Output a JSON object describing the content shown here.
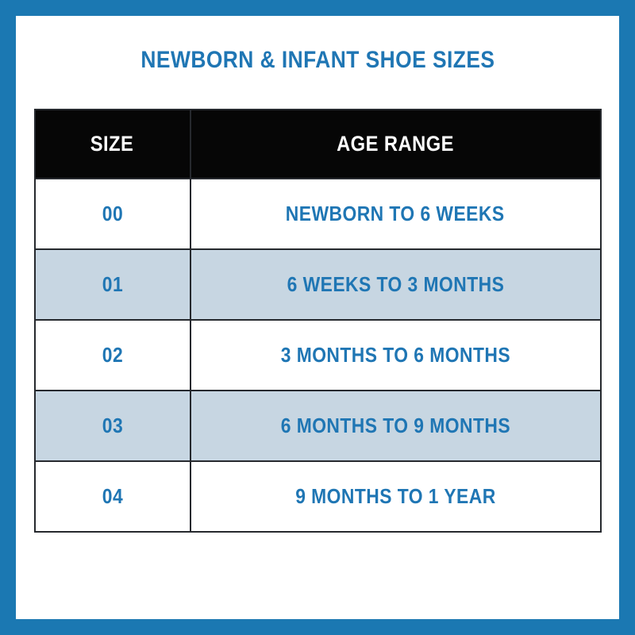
{
  "chart_data": {
    "type": "table",
    "title": "NEWBORN & INFANT SHOE SIZES",
    "columns": [
      "SIZE",
      "AGE RANGE"
    ],
    "rows": [
      [
        "00",
        "NEWBORN TO 6 WEEKS"
      ],
      [
        "01",
        "6 WEEKS TO 3 MONTHS"
      ],
      [
        "02",
        "3 MONTHS TO 6 MONTHS"
      ],
      [
        "03",
        "6 MONTHS TO 9 MONTHS"
      ],
      [
        "04",
        "9 MONTHS TO 1 YEAR"
      ]
    ],
    "layout": {
      "legend": "none",
      "grid": "on",
      "alternating_row_shading": true
    }
  },
  "colors": {
    "frame_blue": "#1b78b2",
    "accent_text_blue": "#1f76b4",
    "alt_row_blue": "#c7d6e2",
    "header_background": "#060606",
    "header_text": "#ffffff",
    "grid_border": "#26292e",
    "page_background": "#ffffff"
  }
}
